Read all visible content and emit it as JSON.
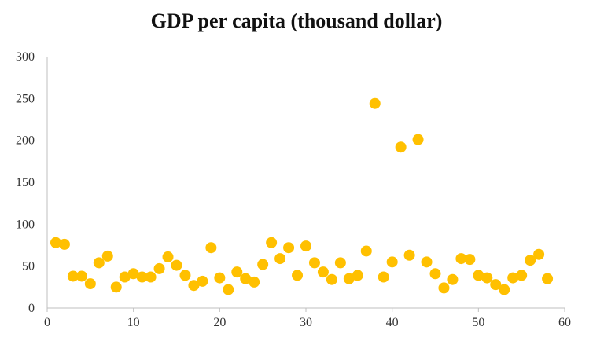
{
  "chart_data": {
    "type": "scatter",
    "title": "GDP per capita (thousand dollar)",
    "xlabel": "",
    "ylabel": "",
    "xlim": [
      0,
      60
    ],
    "ylim": [
      0,
      300
    ],
    "xticks": [
      0,
      10,
      20,
      30,
      40,
      50,
      60
    ],
    "yticks": [
      0,
      50,
      100,
      150,
      200,
      250,
      300
    ],
    "grid": false,
    "marker_color": "#FFC000",
    "series": [
      {
        "x": [
          1,
          2,
          3,
          4,
          5,
          6,
          7,
          8,
          9,
          10,
          11,
          12,
          13,
          14,
          15,
          16,
          17,
          18,
          19,
          20,
          21,
          22,
          23,
          24,
          25,
          26,
          27,
          28,
          29,
          30,
          31,
          32,
          33,
          34,
          35,
          36,
          37,
          38,
          39,
          40,
          41,
          42,
          43,
          44,
          45,
          46,
          47,
          48,
          49,
          50,
          51,
          52,
          53,
          54,
          55,
          56,
          57,
          58
        ],
        "y": [
          78,
          76,
          38,
          38,
          29,
          54,
          62,
          25,
          37,
          41,
          37,
          37,
          47,
          61,
          51,
          39,
          27,
          32,
          72,
          36,
          22,
          43,
          35,
          31,
          52,
          78,
          59,
          72,
          39,
          74,
          54,
          43,
          34,
          54,
          35,
          39,
          68,
          244,
          37,
          55,
          192,
          63,
          201,
          55,
          41,
          24,
          34,
          59,
          58,
          39,
          36,
          28,
          22,
          36,
          39,
          57,
          64,
          35
        ]
      }
    ]
  }
}
